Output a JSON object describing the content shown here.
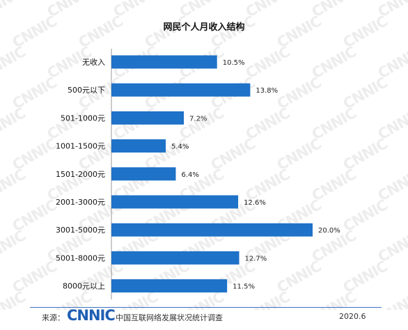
{
  "watermark": "CNNIC",
  "chart_data": {
    "type": "bar",
    "orientation": "horizontal",
    "title": "网民个人月收入结构",
    "categories": [
      "无收入",
      "500元以下",
      "501-1000元",
      "1001-1500元",
      "1501-2000元",
      "2001-3000元",
      "3001-5000元",
      "5001-8000元",
      "8000元以上"
    ],
    "values": [
      10.5,
      13.8,
      7.2,
      5.4,
      6.4,
      12.6,
      20.0,
      12.7,
      11.5
    ],
    "value_labels": [
      "10.5%",
      "13.8%",
      "7.2%",
      "5.4%",
      "6.4%",
      "12.6%",
      "20.0%",
      "12.7%",
      "11.5%"
    ],
    "unit": "%",
    "xlim": [
      0,
      20
    ],
    "bar_color": "#1e72c8",
    "grid": false,
    "legend": "none"
  },
  "footer": {
    "source_label": "来源：",
    "logo_text": "CNNIC",
    "org_name": "中国互联网络发展状况统计调查",
    "date": "2020.6",
    "logo_color": "#1f5fb4",
    "line_color": "#3b6fc4"
  }
}
